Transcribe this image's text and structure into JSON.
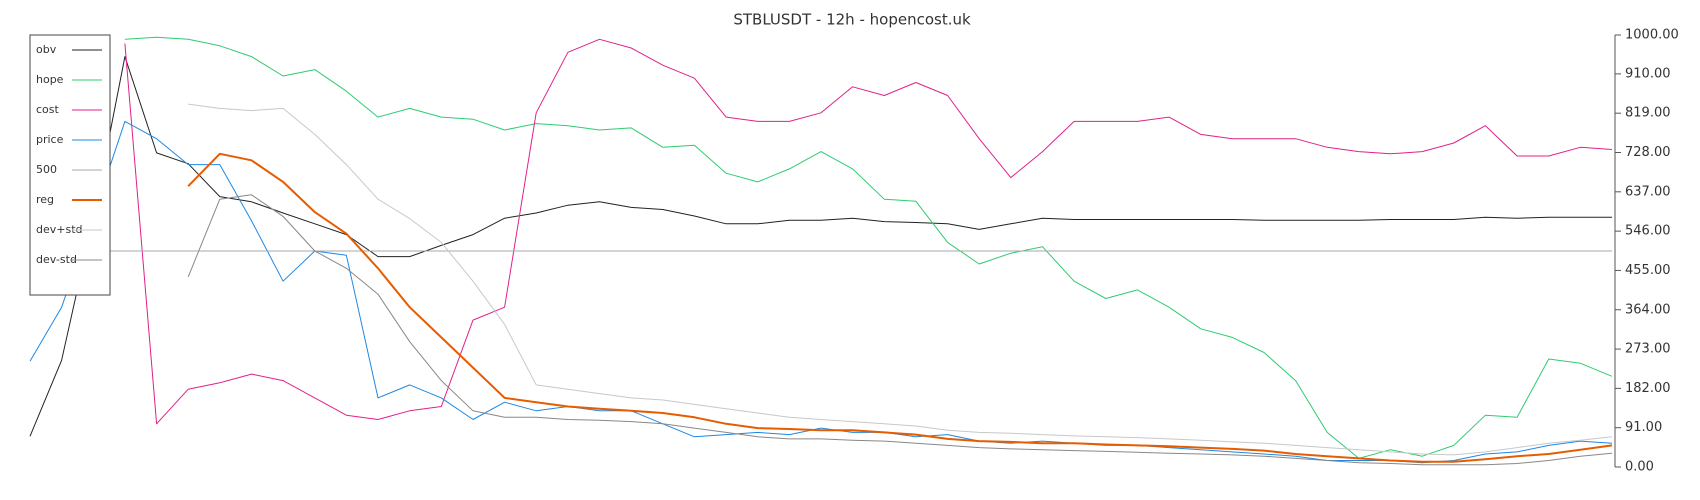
{
  "chart_data": {
    "type": "line",
    "title": "STBLUSDT - 12h - hopencost.uk",
    "ylim": [
      0,
      1000
    ],
    "yticks": [
      {
        "value": 0,
        "label": "0.00"
      },
      {
        "value": 91,
        "label": "91.00"
      },
      {
        "value": 182,
        "label": "182.00"
      },
      {
        "value": 273,
        "label": "273.00"
      },
      {
        "value": 364,
        "label": "364.00"
      },
      {
        "value": 455,
        "label": "455.00"
      },
      {
        "value": 546,
        "label": "546.00"
      },
      {
        "value": 637,
        "label": "637.00"
      },
      {
        "value": 728,
        "label": "728.00"
      },
      {
        "value": 819,
        "label": "819.00"
      },
      {
        "value": 910,
        "label": "910.00"
      },
      {
        "value": 1000,
        "label": "1000.00"
      }
    ],
    "legend": "top-left",
    "series": [
      {
        "name": "obv",
        "color": "#222222",
        "width": 1,
        "values": [
          71,
          247,
          576,
          950,
          727,
          702,
          626,
          614,
          588,
          563,
          538,
          487,
          487,
          513,
          538,
          576,
          588,
          606,
          614,
          601,
          596,
          581,
          563,
          563,
          571,
          571,
          576,
          568,
          566,
          563,
          550,
          563,
          576,
          573,
          573,
          573,
          573,
          573,
          573,
          571,
          571,
          571,
          571,
          573,
          573,
          573,
          578,
          576,
          578,
          578,
          578
        ]
      },
      {
        "name": "hope",
        "color": "#2ecc71",
        "width": 1,
        "values": [
          null,
          null,
          null,
          990,
          995,
          990,
          975,
          950,
          905,
          920,
          870,
          810,
          830,
          810,
          805,
          780,
          795,
          790,
          780,
          785,
          740,
          745,
          680,
          660,
          690,
          730,
          690,
          620,
          615,
          520,
          470,
          495,
          510,
          430,
          390,
          410,
          370,
          320,
          300,
          265,
          200,
          80,
          20,
          40,
          25,
          50,
          120,
          115,
          250,
          240,
          210
        ]
      },
      {
        "name": "cost",
        "color": "#e0218a",
        "width": 1,
        "values": [
          null,
          null,
          null,
          980,
          100,
          180,
          195,
          215,
          200,
          160,
          120,
          110,
          130,
          140,
          340,
          370,
          820,
          960,
          990,
          970,
          930,
          900,
          810,
          800,
          800,
          820,
          880,
          860,
          890,
          860,
          760,
          670,
          730,
          800,
          800,
          800,
          810,
          770,
          760,
          760,
          760,
          740,
          730,
          725,
          730,
          750,
          790,
          720,
          720,
          740,
          735
        ]
      },
      {
        "name": "price",
        "color": "#1e88e5",
        "width": 1,
        "values": [
          245,
          370,
          580,
          800,
          760,
          700,
          700,
          570,
          430,
          500,
          490,
          160,
          190,
          160,
          110,
          150,
          130,
          140,
          130,
          130,
          100,
          70,
          75,
          80,
          75,
          90,
          80,
          80,
          70,
          75,
          60,
          55,
          60,
          55,
          50,
          50,
          45,
          40,
          35,
          30,
          25,
          15,
          15,
          15,
          10,
          15,
          30,
          35,
          50,
          60,
          55
        ]
      },
      {
        "name": "500",
        "color": "#aaaaaa",
        "width": 1,
        "values": [
          500,
          500,
          500,
          500,
          500,
          500,
          500,
          500,
          500,
          500,
          500,
          500,
          500,
          500,
          500,
          500,
          500,
          500,
          500,
          500,
          500,
          500,
          500,
          500,
          500,
          500,
          500,
          500,
          500,
          500,
          500,
          500,
          500,
          500,
          500,
          500,
          500,
          500,
          500,
          500,
          500,
          500,
          500,
          500,
          500,
          500,
          500,
          500,
          500,
          500,
          500
        ]
      },
      {
        "name": "reg",
        "color": "#e65c00",
        "width": 2,
        "values": [
          null,
          null,
          null,
          null,
          null,
          650,
          725,
          710,
          660,
          590,
          540,
          460,
          370,
          300,
          230,
          160,
          150,
          140,
          135,
          130,
          125,
          115,
          100,
          90,
          88,
          85,
          85,
          80,
          75,
          65,
          60,
          58,
          55,
          55,
          52,
          50,
          48,
          45,
          42,
          38,
          30,
          25,
          20,
          15,
          12,
          12,
          18,
          25,
          30,
          40,
          50
        ]
      },
      {
        "name": "dev+std",
        "color": "#c8c8c8",
        "width": 1,
        "values": [
          null,
          null,
          null,
          null,
          null,
          840,
          830,
          825,
          830,
          770,
          700,
          620,
          575,
          520,
          430,
          330,
          190,
          180,
          170,
          160,
          155,
          145,
          135,
          125,
          115,
          110,
          105,
          100,
          95,
          85,
          80,
          78,
          75,
          72,
          70,
          68,
          65,
          62,
          58,
          55,
          50,
          45,
          40,
          35,
          30,
          28,
          35,
          45,
          55,
          62,
          70
        ]
      },
      {
        "name": "dev-std",
        "color": "#888888",
        "width": 1,
        "values": [
          null,
          null,
          null,
          null,
          null,
          440,
          620,
          630,
          580,
          500,
          460,
          400,
          290,
          200,
          130,
          115,
          115,
          110,
          108,
          105,
          100,
          90,
          80,
          70,
          65,
          65,
          62,
          60,
          55,
          50,
          45,
          42,
          40,
          38,
          36,
          34,
          32,
          30,
          28,
          25,
          20,
          15,
          10,
          8,
          5,
          5,
          5,
          8,
          15,
          25,
          32
        ]
      }
    ]
  }
}
